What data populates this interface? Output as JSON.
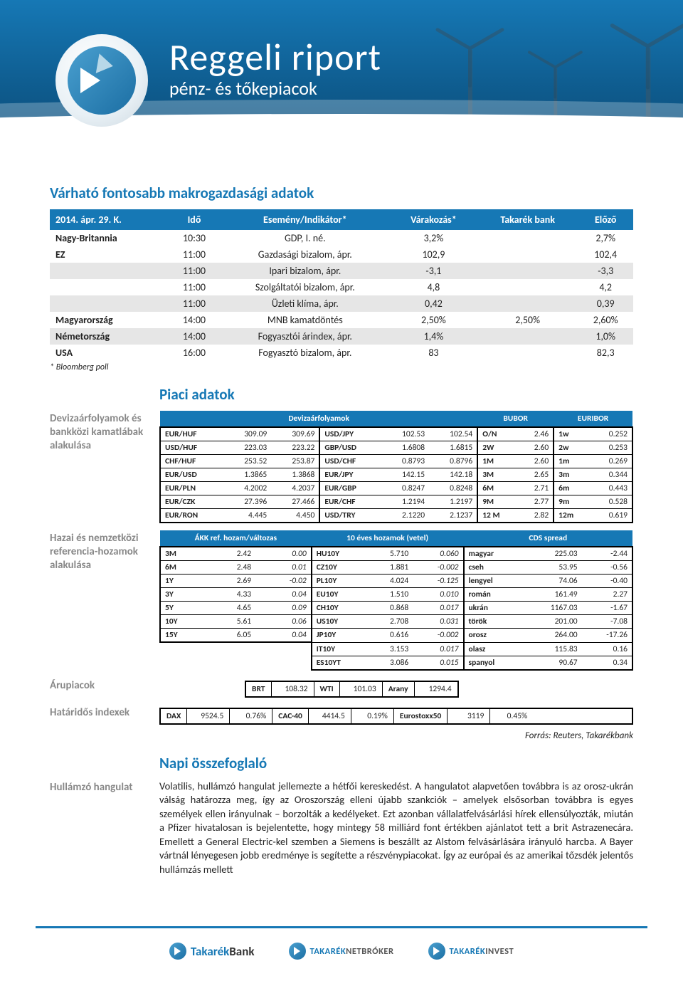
{
  "header": {
    "title": "Reggeli riport",
    "subtitle": "pénz- és tőkepiacok",
    "date": "2014. április 29. kedd"
  },
  "macro": {
    "section_title": "Várható fontosabb makrogazdasági adatok",
    "columns": [
      "2014. ápr. 29. K.",
      "Idő",
      "Esemény/Indikátor*",
      "Várakozás*",
      "Takarék bank",
      "Előző"
    ],
    "rows": [
      {
        "country": "Nagy-Britannia",
        "time": "10:30",
        "event": "GDP, I. né.",
        "forecast": "3,2%",
        "tb": "",
        "prev": "2,7%",
        "alt": false
      },
      {
        "country": "EZ",
        "time": "11:00",
        "event": "Gazdasági bizalom, ápr.",
        "forecast": "102,9",
        "tb": "",
        "prev": "102,4",
        "alt": false
      },
      {
        "country": "",
        "time": "11:00",
        "event": "Ipari bizalom, ápr.",
        "forecast": "-3,1",
        "tb": "",
        "prev": "-3,3",
        "alt": true
      },
      {
        "country": "",
        "time": "11:00",
        "event": "Szolgáltatói bizalom, ápr.",
        "forecast": "4,8",
        "tb": "",
        "prev": "4,2",
        "alt": false
      },
      {
        "country": "",
        "time": "11:00",
        "event": "Üzleti klíma, ápr.",
        "forecast": "0,42",
        "tb": "",
        "prev": "0,39",
        "alt": true
      },
      {
        "country": "Magyarország",
        "time": "14:00",
        "event": "MNB kamatdöntés",
        "forecast": "2,50%",
        "tb": "2,50%",
        "prev": "2,60%",
        "alt": false
      },
      {
        "country": "Németország",
        "time": "14:00",
        "event": "Fogyasztói árindex, ápr.",
        "forecast": "1,4%",
        "tb": "",
        "prev": "1,0%",
        "alt": true
      },
      {
        "country": "USA",
        "time": "16:00",
        "event": "Fogyasztó bizalom, ápr.",
        "forecast": "83",
        "tb": "",
        "prev": "82,3",
        "alt": false
      }
    ],
    "footnote": "* Bloomberg poll"
  },
  "piaci": {
    "section_title": "Piaci adatok",
    "fx": {
      "label": "Devizaárfolyamok és bankközi kamatlábak alakulása",
      "h1": "Devizaárfolyamok",
      "h2": "BUBOR",
      "h3": "EURIBOR",
      "rows": [
        {
          "p1": "EUR/HUF",
          "a1": "309.09",
          "b1": "309.69",
          "p2": "USD/JPY",
          "a2": "102.53",
          "b2": "102.54",
          "bp": "O/N",
          "bv": "2.46",
          "ep": "1w",
          "ev": "0.252"
        },
        {
          "p1": "USD/HUF",
          "a1": "223.03",
          "b1": "223.22",
          "p2": "GBP/USD",
          "a2": "1.6808",
          "b2": "1.6815",
          "bp": "2W",
          "bv": "2.60",
          "ep": "2w",
          "ev": "0.253"
        },
        {
          "p1": "CHF/HUF",
          "a1": "253.52",
          "b1": "253.87",
          "p2": "USD/CHF",
          "a2": "0.8793",
          "b2": "0.8796",
          "bp": "1M",
          "bv": "2.60",
          "ep": "1m",
          "ev": "0.269"
        },
        {
          "p1": "EUR/USD",
          "a1": "1.3865",
          "b1": "1.3868",
          "p2": "EUR/JPY",
          "a2": "142.15",
          "b2": "142.18",
          "bp": "3M",
          "bv": "2.65",
          "ep": "3m",
          "ev": "0.344"
        },
        {
          "p1": "EUR/PLN",
          "a1": "4.2002",
          "b1": "4.2037",
          "p2": "EUR/GBP",
          "a2": "0.8247",
          "b2": "0.8248",
          "bp": "6M",
          "bv": "2.71",
          "ep": "6m",
          "ev": "0.443"
        },
        {
          "p1": "EUR/CZK",
          "a1": "27.396",
          "b1": "27.466",
          "p2": "EUR/CHF",
          "a2": "1.2194",
          "b2": "1.2197",
          "bp": "9M",
          "bv": "2.77",
          "ep": "9m",
          "ev": "0.528"
        },
        {
          "p1": "EUR/RON",
          "a1": "4.445",
          "b1": "4.450",
          "p2": "USD/TRY",
          "a2": "2.1220",
          "b2": "2.1237",
          "bp": "12 M",
          "bv": "2.82",
          "ep": "12m",
          "ev": "0.619"
        }
      ]
    },
    "yields": {
      "label": "Hazai és nemzetközi referencia-hozamok alakulása",
      "h1": "ÁKK ref. hozam/változas",
      "h2": "10 éves hozamok (vetel)",
      "h3": "CDS spread",
      "rows": [
        {
          "a": "3M",
          "av": "2.42",
          "ac": "0.00",
          "b": "HU10Y",
          "bv": "5.710",
          "bc": "0.060",
          "c": "magyar",
          "cv": "225.03",
          "cc": "-2.44"
        },
        {
          "a": "6M",
          "av": "2.48",
          "ac": "0.01",
          "b": "CZ10Y",
          "bv": "1.881",
          "bc": "-0.002",
          "c": "cseh",
          "cv": "53.95",
          "cc": "-0.56"
        },
        {
          "a": "1Y",
          "av": "2.69",
          "ac": "-0.02",
          "b": "PL10Y",
          "bv": "4.024",
          "bc": "-0.125",
          "c": "lengyel",
          "cv": "74.06",
          "cc": "-0.40"
        },
        {
          "a": "3Y",
          "av": "4.33",
          "ac": "0.04",
          "b": "EU10Y",
          "bv": "1.510",
          "bc": "0.010",
          "c": "román",
          "cv": "161.49",
          "cc": "2.27"
        },
        {
          "a": "5Y",
          "av": "4.65",
          "ac": "0.09",
          "b": "CH10Y",
          "bv": "0.868",
          "bc": "0.017",
          "c": "ukrán",
          "cv": "1167.03",
          "cc": "-1.67"
        },
        {
          "a": "10Y",
          "av": "5.61",
          "ac": "0.06",
          "b": "US10Y",
          "bv": "2.708",
          "bc": "0.031",
          "c": "török",
          "cv": "201.00",
          "cc": "-7.08"
        },
        {
          "a": "15Y",
          "av": "6.05",
          "ac": "0.04",
          "b": "JP10Y",
          "bv": "0.616",
          "bc": "-0.002",
          "c": "orosz",
          "cv": "264.00",
          "cc": "-17.26"
        },
        {
          "a": "",
          "av": "",
          "ac": "",
          "b": "IT10Y",
          "bv": "3.153",
          "bc": "0.017",
          "c": "olasz",
          "cv": "115.83",
          "cc": "0.16"
        },
        {
          "a": "",
          "av": "",
          "ac": "",
          "b": "ES10YT",
          "bv": "3.086",
          "bc": "0.015",
          "c": "spanyol",
          "cv": "90.67",
          "cc": "0.34"
        }
      ]
    },
    "commodities": {
      "label": "Árupiacok",
      "items": [
        {
          "lbl": "BRT",
          "val": "108.32"
        },
        {
          "lbl": "WTI",
          "val": "101.03"
        },
        {
          "lbl": "Arany",
          "val": "1294.4"
        }
      ]
    },
    "futures": {
      "label": "Határidős indexek",
      "items": [
        {
          "lbl": "DAX",
          "val": "9524.5",
          "chg": "0.76%"
        },
        {
          "lbl": "CAC-40",
          "val": "4414.5",
          "chg": "0.19%"
        },
        {
          "lbl": "Eurostoxx50",
          "val": "3119",
          "chg": "0.45%"
        }
      ]
    },
    "source": "Forrás: Reuters, Takarékbank"
  },
  "summary": {
    "section_title": "Napi összefoglaló",
    "label": "Hullámzó hangulat",
    "text": "Volatilis, hullámzó hangulat jellemezte a hétfői kereskedést. A hangulatot alapvetően továbbra is az orosz-ukrán válság határozza meg, így az Oroszország elleni újabb szankciók – amelyek elsősorban továbbra is egyes személyek ellen irányulnak – borzolták a kedélyeket. Ezt azonban vállalatfelvásárlási hírek ellensúlyozták, miután a Pfizer hivatalosan is bejelentette, hogy mintegy 58 milliárd font értékben ajánlatot tett a brit Astrazenecára. Emellett a General Electric-kel szemben a Siemens is beszállt az Alstom felvásárlására irányuló harcba. A Bayer vártnál lényegesen jobb eredménye is segítette a részvénypiacokat. Így az európai és az amerikai tőzsdék jelentős hullámzás mellett"
  },
  "footer": {
    "b1a": "Takarék",
    "b1b": "Bank",
    "b2a": "TAKARÉK",
    "b2b": "NETBRÓKER",
    "b3a": "TAKARÉK",
    "b3b": "INVEST"
  }
}
